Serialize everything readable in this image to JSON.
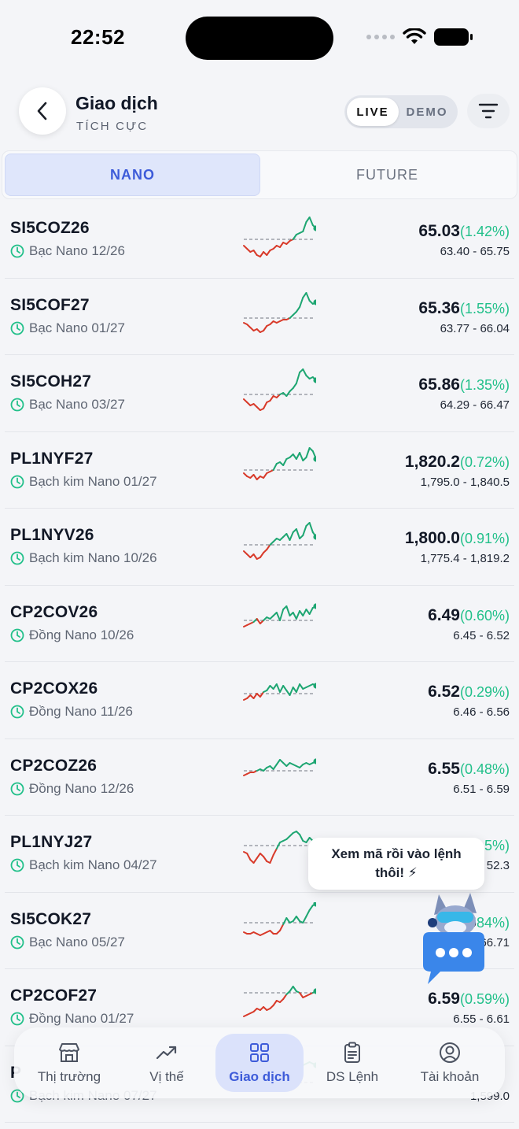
{
  "status_bar": {
    "time": "22:52"
  },
  "header": {
    "title": "Giao dịch",
    "subtitle": "TÍCH CỰC",
    "mode_live": "LIVE",
    "mode_demo": "DEMO"
  },
  "tabs": [
    {
      "label": "NANO",
      "active": true
    },
    {
      "label": "FUTURE",
      "active": false
    }
  ],
  "rows": [
    {
      "symbol": "SI5COZ26",
      "name": "Bạc Nano 12/26",
      "price": "65.03",
      "change": "(1.42%)",
      "range": "63.40 - 65.75"
    },
    {
      "symbol": "SI5COF27",
      "name": "Bạc Nano 01/27",
      "price": "65.36",
      "change": "(1.55%)",
      "range": "63.77 - 66.04"
    },
    {
      "symbol": "SI5COH27",
      "name": "Bạc Nano 03/27",
      "price": "65.86",
      "change": "(1.35%)",
      "range": "64.29 - 66.47"
    },
    {
      "symbol": "PL1NYF27",
      "name": "Bạch kim Nano 01/27",
      "price": "1,820.2",
      "change": "(0.72%)",
      "range": "1,795.0 - 1,840.5"
    },
    {
      "symbol": "PL1NYV26",
      "name": "Bạch kim Nano 10/26",
      "price": "1,800.0",
      "change": "(0.91%)",
      "range": "1,775.4 - 1,819.2"
    },
    {
      "symbol": "CP2COV26",
      "name": "Đồng Nano 10/26",
      "price": "6.49",
      "change": "(0.60%)",
      "range": "6.45 - 6.52"
    },
    {
      "symbol": "CP2COX26",
      "name": "Đồng Nano 11/26",
      "price": "6.52",
      "change": "(0.29%)",
      "range": "6.46 - 6.56"
    },
    {
      "symbol": "CP2COZ26",
      "name": "Đồng Nano 12/26",
      "price": "6.55",
      "change": "(0.48%)",
      "range": "6.51 - 6.59"
    },
    {
      "symbol": "PL1NYJ27",
      "name": "Bạch kim Nano 04/27",
      "price": "",
      "change": "5%)",
      "range": "52.3"
    },
    {
      "symbol": "SI5COK27",
      "name": "Bạc Nano 05/27",
      "price": "66",
      "change": "84%)",
      "range": "66.71"
    },
    {
      "symbol": "CP2COF27",
      "name": "Đồng Nano 01/27",
      "price": "6.59",
      "change": "(0.59%)",
      "range": "6.55 - 6.61"
    },
    {
      "symbol": "P",
      "name": "Bạch kim Nano 07/27",
      "price": "",
      "change": "",
      "range": "1,599.0"
    }
  ],
  "tooltip": {
    "text": "Xem mã rồi vào lệnh thôi! ⚡"
  },
  "bottom_nav": [
    {
      "label": "Thị trường",
      "icon": "store-icon",
      "active": false
    },
    {
      "label": "Vị thế",
      "icon": "trend-up-icon",
      "active": false
    },
    {
      "label": "Giao dịch",
      "icon": "grid-icon",
      "active": true
    },
    {
      "label": "DS Lệnh",
      "icon": "clipboard-icon",
      "active": false
    },
    {
      "label": "Tài khoản",
      "icon": "user-circle-icon",
      "active": false
    }
  ],
  "colors": {
    "up": "#1ea672",
    "down": "#d83a2a",
    "accent": "#3d5bd9",
    "change": "#22c08a"
  }
}
